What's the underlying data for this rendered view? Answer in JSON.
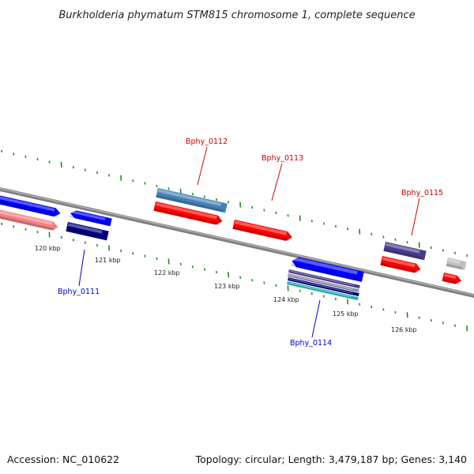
{
  "title": "Burkholderia phymatum STM815 chromosome 1, complete sequence",
  "footer": {
    "accession": "Accession: NC_010622",
    "summary": "Topology: circular; Length: 3,479,187 bp; Genes: 3,140"
  },
  "colors": {
    "backbone": "#808080",
    "tick": "#228b22",
    "forward_label": "#cc0000",
    "reverse_label": "#0000cc"
  },
  "kbp_marks": [
    {
      "label": "120 kbp"
    },
    {
      "label": "121 kbp"
    },
    {
      "label": "122 kbp"
    },
    {
      "label": "123 kbp"
    },
    {
      "label": "124 kbp"
    },
    {
      "label": "125 kbp"
    },
    {
      "label": "126 kbp"
    }
  ],
  "genes": [
    {
      "label": "Bphy_0111",
      "strand": "reverse"
    },
    {
      "label": "Bphy_0112",
      "strand": "forward"
    },
    {
      "label": "Bphy_0113",
      "strand": "forward"
    },
    {
      "label": "Bphy_0114",
      "strand": "reverse"
    },
    {
      "label": "Bphy_0115",
      "strand": "forward"
    }
  ],
  "feature_colors": {
    "cds_forward": "#ff0000",
    "cds_reverse": "#0000ff",
    "gene_forward": "#4682b4",
    "gene_reverse_dark": "#000080",
    "gene_other": "#483d8b",
    "rna_light": "#f08080",
    "misc": "#c0c0c0",
    "teal": "#20b2aa"
  }
}
